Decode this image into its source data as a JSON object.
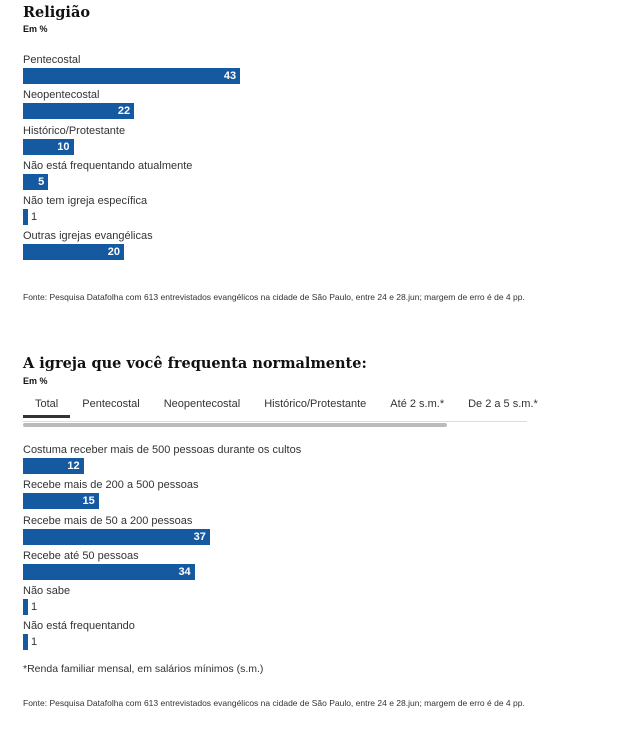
{
  "chart_data": [
    {
      "type": "bar",
      "title": "Religião",
      "unit": "Em %",
      "categories": [
        "Pentecostal",
        "Neopentecostal",
        "Histórico/Protestante",
        "Não está frequentando atualmente",
        "Não tem igreja específica",
        "Outras igrejas evangélicas"
      ],
      "values": [
        43,
        22,
        10,
        5,
        1,
        20
      ],
      "source": "Fonte: Pesquisa Datafolha com 613 entrevistados evangélicos na cidade de São Paulo, entre 24 e 28.jun; margem de erro é de 4 pp."
    },
    {
      "type": "bar",
      "title": "A igreja que você frequenta normalmente:",
      "unit": "Em %",
      "tabs": [
        "Total",
        "Pentecostal",
        "Neopentecostal",
        "Histórico/Protestante",
        "Até 2 s.m.*",
        "De 2 a 5 s.m.*"
      ],
      "active_tab": "Total",
      "categories": [
        "Costuma receber mais de 500 pessoas durante os cultos",
        "Recebe mais de 200 a 500 pessoas",
        "Recebe mais de 50 a 200 pessoas",
        "Recebe até 50 pessoas",
        "Não sabe",
        "Não está frequentando"
      ],
      "values": [
        12,
        15,
        37,
        34,
        1,
        1
      ],
      "note": "*Renda familiar mensal, em salários mínimos (s.m.)",
      "source": "Fonte: Pesquisa Datafolha com 613 entrevistados evangélicos na cidade de São Paulo, entre 24 e 28.jun; margem de erro é de 4 pp."
    }
  ],
  "colors": {
    "bar": "#155aa1"
  }
}
